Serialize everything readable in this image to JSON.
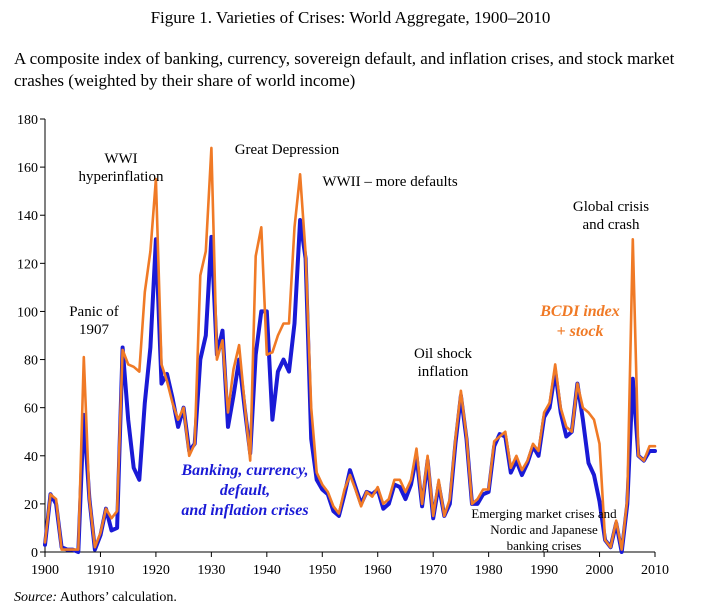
{
  "figure_title": "Figure 1. Varieties of Crises: World Aggregate, 1900–2010",
  "subtitle": "A composite index of banking, currency, sovereign default, and inflation crises, and stock market crashes (weighted by their share of world income)",
  "source": {
    "label": "Source:",
    "text": "Authors’ calculation."
  },
  "chart_data": {
    "type": "line",
    "title": "",
    "xlabel": "",
    "ylabel": "",
    "xlim": [
      1900,
      2010
    ],
    "ylim": [
      0,
      180
    ],
    "x_ticks": [
      1900,
      1910,
      1920,
      1930,
      1940,
      1950,
      1960,
      1970,
      1980,
      1990,
      2000,
      2010
    ],
    "y_ticks": [
      0,
      20,
      40,
      60,
      80,
      100,
      120,
      140,
      160,
      180
    ],
    "grid": false,
    "legend": "inline labels",
    "x": [
      1900,
      1901,
      1902,
      1903,
      1904,
      1905,
      1906,
      1907,
      1908,
      1909,
      1910,
      1911,
      1912,
      1913,
      1914,
      1915,
      1916,
      1917,
      1918,
      1919,
      1920,
      1921,
      1922,
      1923,
      1924,
      1925,
      1926,
      1927,
      1928,
      1929,
      1930,
      1931,
      1932,
      1933,
      1934,
      1935,
      1936,
      1937,
      1938,
      1939,
      1940,
      1941,
      1942,
      1943,
      1944,
      1945,
      1946,
      1947,
      1948,
      1949,
      1950,
      1951,
      1952,
      1953,
      1954,
      1955,
      1956,
      1957,
      1958,
      1959,
      1960,
      1961,
      1962,
      1963,
      1964,
      1965,
      1966,
      1967,
      1968,
      1969,
      1970,
      1971,
      1972,
      1973,
      1974,
      1975,
      1976,
      1977,
      1978,
      1979,
      1980,
      1981,
      1982,
      1983,
      1984,
      1985,
      1986,
      1987,
      1988,
      1989,
      1990,
      1991,
      1992,
      1993,
      1994,
      1995,
      1996,
      1997,
      1998,
      1999,
      2000,
      2001,
      2002,
      2003,
      2004,
      2005,
      2006,
      2007,
      2008,
      2009,
      2010
    ],
    "series": [
      {
        "name": "Banking, currency, default, and inflation crises",
        "color": "#1a1ad6",
        "values": [
          3,
          24,
          20,
          2,
          1,
          1,
          0,
          57,
          22,
          1,
          7,
          18,
          9,
          10,
          85,
          55,
          35,
          30,
          62,
          85,
          130,
          70,
          74,
          64,
          52,
          60,
          42,
          45,
          80,
          90,
          131,
          82,
          92,
          52,
          65,
          80,
          60,
          41,
          82,
          100,
          100,
          55,
          75,
          80,
          75,
          95,
          138,
          122,
          47,
          30,
          26,
          24,
          17,
          15,
          24,
          34,
          27,
          20,
          25,
          24,
          26,
          18,
          20,
          28,
          27,
          22,
          28,
          40,
          19,
          38,
          14,
          28,
          15,
          20,
          45,
          65,
          47,
          20,
          20,
          24,
          25,
          44,
          49,
          48,
          33,
          38,
          32,
          37,
          44,
          40,
          56,
          60,
          75,
          58,
          48,
          50,
          70,
          55,
          37,
          32,
          21,
          5,
          2,
          12,
          0,
          20,
          72,
          40,
          38,
          42,
          42
        ]
      },
      {
        "name": "BCDI index + stock",
        "color": "#f07a26",
        "values": [
          4,
          24,
          22,
          1,
          1,
          1,
          1,
          81,
          22,
          2,
          8,
          18,
          14,
          17,
          84,
          78,
          77,
          75,
          108,
          125,
          155,
          78,
          71,
          62,
          55,
          60,
          40,
          45,
          115,
          125,
          168,
          80,
          88,
          58,
          76,
          86,
          62,
          38,
          123,
          135,
          82,
          83,
          90,
          95,
          95,
          135,
          157,
          124,
          60,
          33,
          28,
          25,
          19,
          16,
          26,
          32,
          26,
          19,
          25,
          23,
          27,
          20,
          22,
          30,
          30,
          25,
          30,
          43,
          20,
          40,
          15,
          30,
          15,
          22,
          47,
          67,
          48,
          20,
          22,
          26,
          26,
          46,
          48,
          50,
          35,
          40,
          34,
          38,
          45,
          42,
          58,
          62,
          78,
          60,
          52,
          50,
          70,
          60,
          58,
          55,
          45,
          5,
          2,
          13,
          1,
          22,
          130,
          40,
          38,
          44,
          44
        ]
      }
    ],
    "annotations": [
      {
        "text": "Panic of\n1907",
        "year": 1907
      },
      {
        "text": "WWI\nhyperinflation",
        "year": 1919
      },
      {
        "text": "Great Depression",
        "year": 1931
      },
      {
        "text": "WWII – more defaults",
        "year": 1946
      },
      {
        "text": "Oil shock\ninflation",
        "year": 1975
      },
      {
        "text": "Emerging market crises and\nNordic and Japanese\nbanking crises",
        "year": 1995
      },
      {
        "text": "Global crisis\nand crash",
        "year": 2008
      }
    ],
    "series_labels": [
      {
        "text": "Banking, currency,\ndefault,\nand inflation crises",
        "series": 0
      },
      {
        "text": "BCDI index\n+ stock",
        "series": 1
      }
    ]
  }
}
